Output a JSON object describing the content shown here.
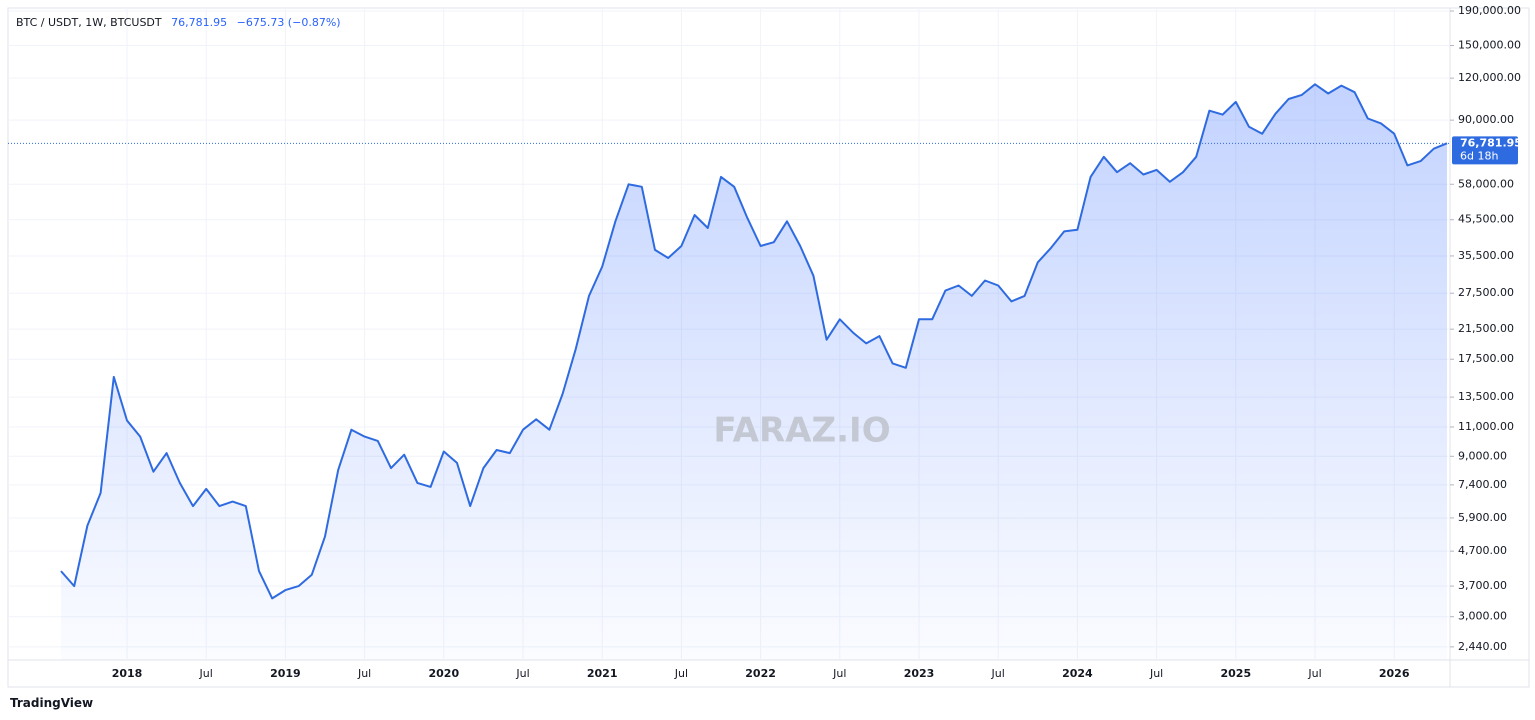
{
  "header": {
    "symbol": "BTC / USDT, 1W, BTCUSDT",
    "legend_price": "76,781.95",
    "legend_change": "−675.73 (−0.87%)",
    "price_tag": "76,781.95",
    "countdown": "6d 18h",
    "watermark": "FARAZ.IO",
    "brand": "TradingView"
  },
  "chart_data": {
    "type": "area",
    "color": "#2f6be0",
    "log_scale": true,
    "grid": true,
    "categories": [
      null,
      null,
      null,
      null,
      null,
      "2018",
      null,
      null,
      null,
      null,
      null,
      "Jul",
      null,
      null,
      null,
      null,
      null,
      "2019",
      null,
      null,
      null,
      null,
      null,
      "Jul",
      null,
      null,
      null,
      null,
      null,
      "2020",
      null,
      null,
      null,
      null,
      null,
      "Jul",
      null,
      null,
      null,
      null,
      null,
      "2021",
      null,
      null,
      null,
      null,
      null,
      "Jul",
      null,
      null,
      null,
      null,
      null,
      "2022",
      null,
      null,
      null,
      null,
      null,
      "Jul",
      null,
      null,
      null,
      null,
      null,
      "2023",
      null,
      null,
      null,
      null,
      null,
      "Jul",
      null,
      null,
      null,
      null,
      null,
      "2024",
      null,
      null,
      null,
      null,
      null,
      "Jul",
      null,
      null,
      null,
      null,
      null,
      "2025",
      null,
      null,
      null,
      null,
      null,
      "Jul",
      null,
      null,
      null,
      null,
      null,
      "2026",
      null,
      null,
      null,
      null
    ],
    "values": [
      4100,
      3700,
      5600,
      7000,
      15500,
      11500,
      10300,
      8100,
      9200,
      7500,
      6400,
      7200,
      6400,
      6600,
      6400,
      4100,
      3400,
      3600,
      3700,
      4000,
      5200,
      8200,
      10800,
      10300,
      10000,
      8300,
      9100,
      7500,
      7300,
      9300,
      8600,
      6400,
      8300,
      9400,
      9200,
      10800,
      11600,
      10800,
      13800,
      18800,
      27000,
      33000,
      45000,
      58000,
      57000,
      37000,
      35000,
      38000,
      47000,
      43000,
      61000,
      57000,
      46000,
      38000,
      39000,
      45000,
      38000,
      31000,
      20000,
      23000,
      21000,
      19500,
      20500,
      17000,
      16500,
      23000,
      23000,
      28000,
      29000,
      27000,
      30000,
      29000,
      26000,
      27000,
      34000,
      37500,
      42000,
      42500,
      61000,
      70000,
      63000,
      67000,
      62000,
      64000,
      59000,
      63000,
      70000,
      96000,
      93500,
      102000,
      86000,
      82000,
      94000,
      104000,
      107000,
      115000,
      108000,
      114000,
      109000,
      91000,
      88000,
      82000,
      66000,
      68000,
      74000,
      76781.95
    ],
    "ylim": [
      2230,
      194000
    ],
    "yticks": [
      {
        "value": 190000,
        "label": "190,000.00"
      },
      {
        "value": 150000,
        "label": "150,000.00"
      },
      {
        "value": 120000,
        "label": "120,000.00"
      },
      {
        "value": 90000,
        "label": "90,000.00"
      },
      {
        "value": 58000,
        "label": "58,000.00"
      },
      {
        "value": 45500,
        "label": "45,500.00"
      },
      {
        "value": 35500,
        "label": "35,500.00"
      },
      {
        "value": 27500,
        "label": "27,500.00"
      },
      {
        "value": 21500,
        "label": "21,500.00"
      },
      {
        "value": 17500,
        "label": "17,500.00"
      },
      {
        "value": 13500,
        "label": "13,500.00"
      },
      {
        "value": 11000,
        "label": "11,000.00"
      },
      {
        "value": 9000,
        "label": "9,000.00"
      },
      {
        "value": 7400,
        "label": "7,400.00"
      },
      {
        "value": 5900,
        "label": "5,900.00"
      },
      {
        "value": 4700,
        "label": "4,700.00"
      },
      {
        "value": 3700,
        "label": "3,700.00"
      },
      {
        "value": 3000,
        "label": "3,000.00"
      },
      {
        "value": 2440,
        "label": "2,440.00"
      }
    ]
  }
}
